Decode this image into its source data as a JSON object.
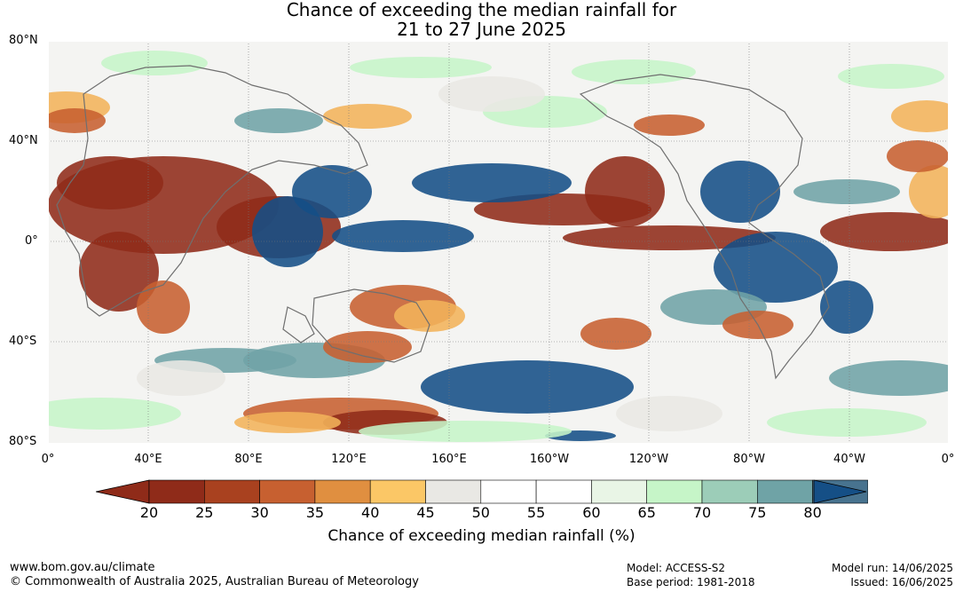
{
  "title": {
    "line1": "Chance of exceeding the median rainfall for",
    "line2": "21 to 27 June 2025"
  },
  "axes": {
    "lat_labels": [
      "80°N",
      "40°N",
      "0°",
      "40°S",
      "80°S"
    ],
    "lon_labels": [
      "0°",
      "40°E",
      "80°E",
      "120°E",
      "160°E",
      "160°W",
      "120°W",
      "80°W",
      "40°W",
      "0°"
    ]
  },
  "colorbar": {
    "ticks": [
      "20",
      "25",
      "30",
      "35",
      "40",
      "45",
      "50",
      "55",
      "60",
      "65",
      "70",
      "75",
      "80"
    ],
    "colors": [
      "#8f2b19",
      "#a9411f",
      "#c76030",
      "#e08f40",
      "#fbc766",
      "#e9e8e4",
      "#ffffff",
      "#ffffff",
      "#e9f5e6",
      "#c6f5c8",
      "#9ccdb8",
      "#6fa3a6",
      "#48738f"
    ],
    "below_color": "#8f2b19",
    "above_color": "#154f86",
    "label": "Chance of exceeding median rainfall (%)"
  },
  "footer": {
    "website": "www.bom.gov.au/climate",
    "copyright": "© Commonwealth of Australia 2025, Australian Bureau of Meteorology",
    "model": "Model: ACCESS-S2",
    "base_period": "Base period: 1981-2018",
    "model_run": "Model run: 14/06/2025",
    "issued": "Issued: 16/06/2025"
  },
  "map": {
    "colors": {
      "dry_strong": "#8f2b19",
      "dry": "#c76030",
      "dry_light": "#f2b35a",
      "neutral": "#e9e8e4",
      "wet_light": "#c6f5c8",
      "wet": "#6fa3a6",
      "wet_strong": "#154f86",
      "coast": "#707070"
    }
  }
}
